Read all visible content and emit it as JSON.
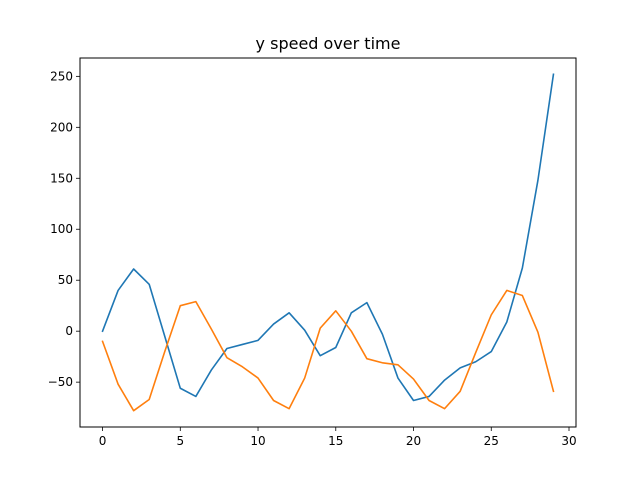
{
  "chart_data": {
    "type": "line",
    "title": "y speed over time",
    "xlabel": "",
    "ylabel": "",
    "xlim": [
      -1.45,
      30.45
    ],
    "ylim": [
      -94,
      268
    ],
    "xticks": [
      0,
      5,
      10,
      15,
      20,
      25,
      30
    ],
    "yticks": [
      -50,
      0,
      50,
      100,
      150,
      200,
      250
    ],
    "grid": false,
    "x": [
      0,
      1,
      2,
      3,
      4,
      5,
      6,
      7,
      8,
      9,
      10,
      11,
      12,
      13,
      14,
      15,
      16,
      17,
      18,
      19,
      20,
      21,
      22,
      23,
      24,
      25,
      26,
      27,
      28,
      29
    ],
    "series": [
      {
        "color": "#1f77b4",
        "values": [
          0,
          40,
          61,
          46,
          -5,
          -56,
          -64,
          -38,
          -17,
          -13,
          -9,
          7,
          18,
          1,
          -24,
          -16,
          18,
          28,
          -3,
          -46,
          -68,
          -64,
          -48,
          -36,
          -30,
          -20,
          9,
          62,
          148,
          252
        ]
      },
      {
        "color": "#ff7f0e",
        "values": [
          -10,
          -52,
          -78,
          -67,
          -20,
          25,
          29,
          2,
          -26,
          -35,
          -46,
          -68,
          -76,
          -46,
          3,
          20,
          0,
          -27,
          -31,
          -33,
          -47,
          -68,
          -76,
          -59,
          -21,
          16,
          40,
          35,
          -1,
          -59
        ]
      }
    ]
  }
}
